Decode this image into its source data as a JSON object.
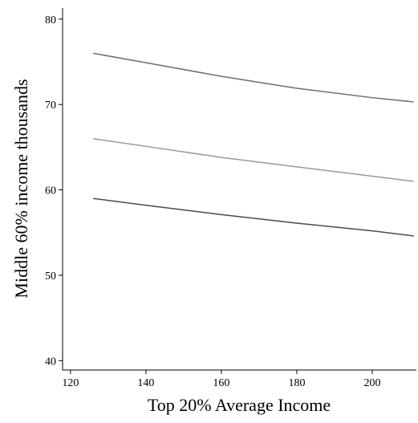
{
  "chart_data": {
    "type": "line",
    "x_label": "Top 20% Average Income",
    "y_label": "Middle 60% income thousands",
    "x": [
      126,
      140,
      160,
      180,
      200,
      211
    ],
    "series": [
      {
        "color": "#6e6e6e",
        "values": [
          76,
          74.9,
          73.3,
          71.9,
          70.8,
          70.3
        ]
      },
      {
        "color": "#9a9a9a",
        "values": [
          66,
          65.1,
          63.8,
          62.7,
          61.6,
          61.0
        ]
      },
      {
        "color": "#4a4a4a",
        "values": [
          59,
          58.2,
          57.1,
          56.1,
          55.2,
          54.6
        ]
      }
    ],
    "xlim": [
      117.9,
      211.7
    ],
    "xticks": [
      120,
      140,
      160,
      180,
      200
    ],
    "ylim": [
      38.9,
      81.3
    ],
    "yticks": [
      40,
      50,
      60,
      70,
      80
    ],
    "grid": false
  }
}
